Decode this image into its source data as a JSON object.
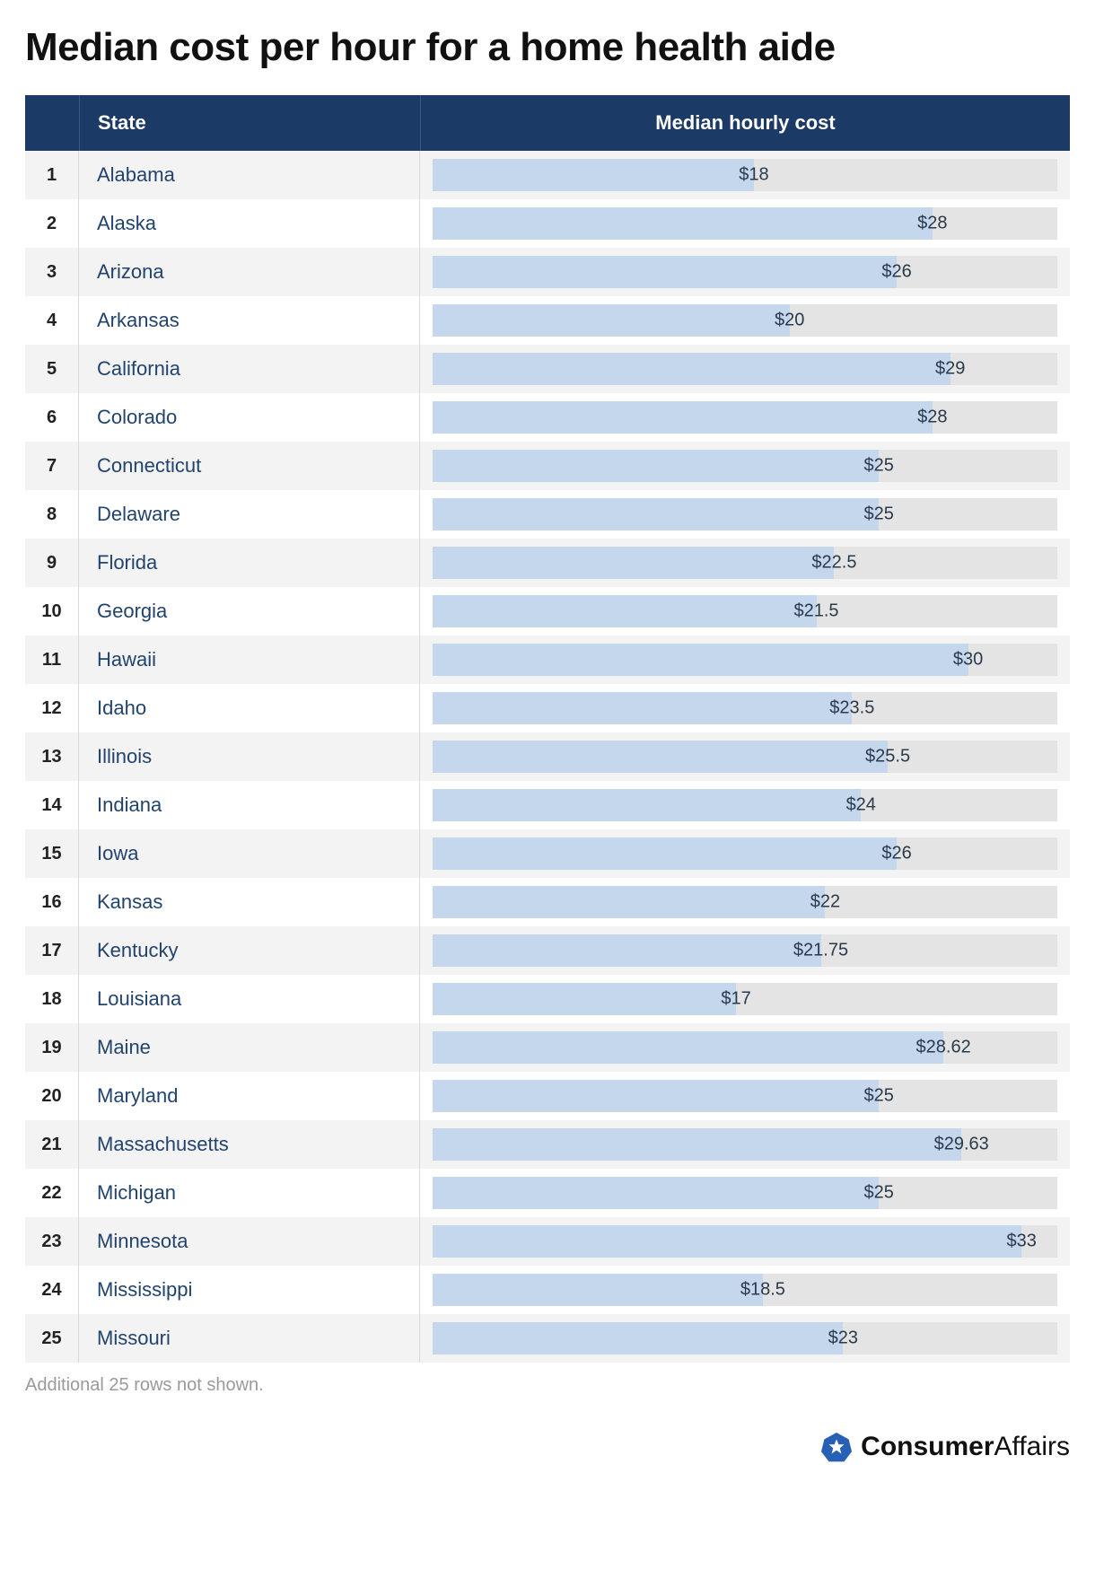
{
  "title": "Median cost per hour for a home health aide",
  "columns": {
    "state": "State",
    "cost": "Median hourly cost"
  },
  "chart": {
    "type": "bar",
    "xmax": 35,
    "bar_fill_color": "#c4d7ec",
    "bar_track_color": "#e4e4e4",
    "header_bg": "#1b3a66",
    "header_text_color": "#ffffff",
    "row_even_bg": "#f3f3f3",
    "row_odd_bg": "#ffffff",
    "state_text_color": "#21436e",
    "rank_text_color": "#222222",
    "value_text_color": "#2a3a4a",
    "title_fontsize": 44,
    "header_fontsize": 22,
    "row_fontsize": 22,
    "value_fontsize": 20
  },
  "rows": [
    {
      "rank": "1",
      "state": "Alabama",
      "value": 18,
      "label": "$18"
    },
    {
      "rank": "2",
      "state": "Alaska",
      "value": 28,
      "label": "$28"
    },
    {
      "rank": "3",
      "state": "Arizona",
      "value": 26,
      "label": "$26"
    },
    {
      "rank": "4",
      "state": "Arkansas",
      "value": 20,
      "label": "$20"
    },
    {
      "rank": "5",
      "state": "California",
      "value": 29,
      "label": "$29"
    },
    {
      "rank": "6",
      "state": "Colorado",
      "value": 28,
      "label": "$28"
    },
    {
      "rank": "7",
      "state": "Connecticut",
      "value": 25,
      "label": "$25"
    },
    {
      "rank": "8",
      "state": "Delaware",
      "value": 25,
      "label": "$25"
    },
    {
      "rank": "9",
      "state": "Florida",
      "value": 22.5,
      "label": "$22.5"
    },
    {
      "rank": "10",
      "state": "Georgia",
      "value": 21.5,
      "label": "$21.5"
    },
    {
      "rank": "11",
      "state": "Hawaii",
      "value": 30,
      "label": "$30"
    },
    {
      "rank": "12",
      "state": "Idaho",
      "value": 23.5,
      "label": "$23.5"
    },
    {
      "rank": "13",
      "state": "Illinois",
      "value": 25.5,
      "label": "$25.5"
    },
    {
      "rank": "14",
      "state": "Indiana",
      "value": 24,
      "label": "$24"
    },
    {
      "rank": "15",
      "state": "Iowa",
      "value": 26,
      "label": "$26"
    },
    {
      "rank": "16",
      "state": "Kansas",
      "value": 22,
      "label": "$22"
    },
    {
      "rank": "17",
      "state": "Kentucky",
      "value": 21.75,
      "label": "$21.75"
    },
    {
      "rank": "18",
      "state": "Louisiana",
      "value": 17,
      "label": "$17"
    },
    {
      "rank": "19",
      "state": "Maine",
      "value": 28.62,
      "label": "$28.62"
    },
    {
      "rank": "20",
      "state": "Maryland",
      "value": 25,
      "label": "$25"
    },
    {
      "rank": "21",
      "state": "Massachusetts",
      "value": 29.63,
      "label": "$29.63"
    },
    {
      "rank": "22",
      "state": "Michigan",
      "value": 25,
      "label": "$25"
    },
    {
      "rank": "23",
      "state": "Minnesota",
      "value": 33,
      "label": "$33"
    },
    {
      "rank": "24",
      "state": "Mississippi",
      "value": 18.5,
      "label": "$18.5"
    },
    {
      "rank": "25",
      "state": "Missouri",
      "value": 23,
      "label": "$23"
    }
  ],
  "footnote": "Additional 25 rows not shown.",
  "brand": {
    "bold": "Consumer",
    "rest": "Affairs",
    "badge_color": "#2860b5"
  }
}
